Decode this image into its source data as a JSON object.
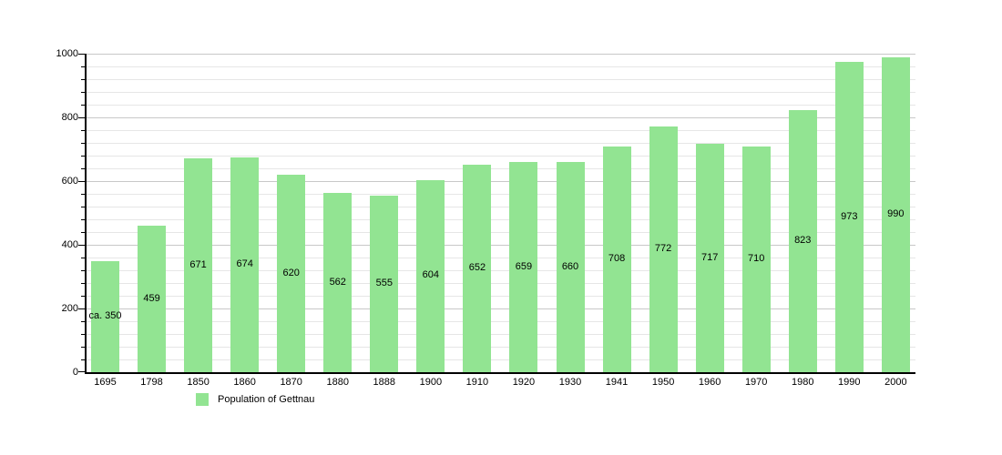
{
  "chart_data": {
    "type": "bar",
    "title": "",
    "xlabel": "",
    "ylabel": "",
    "categories": [
      "1695",
      "1798",
      "1850",
      "1860",
      "1870",
      "1880",
      "1888",
      "1900",
      "1910",
      "1920",
      "1930",
      "1941",
      "1950",
      "1960",
      "1970",
      "1980",
      "1990",
      "2000"
    ],
    "values": [
      350,
      459,
      671,
      674,
      620,
      562,
      555,
      604,
      652,
      659,
      660,
      708,
      772,
      717,
      710,
      823,
      973,
      990
    ],
    "value_labels": [
      "ca. 350",
      "459",
      "671",
      "674",
      "620",
      "562",
      "555",
      "604",
      "652",
      "659",
      "660",
      "708",
      "772",
      "717",
      "710",
      "823",
      "973",
      "990"
    ],
    "ylim": [
      0,
      1000
    ],
    "y_major_step": 200,
    "y_minor_step": 40,
    "y_tick_labels": [
      "0",
      "200",
      "400",
      "600",
      "800",
      "1000"
    ],
    "grid": "on",
    "legend": {
      "position": "bottom-left",
      "entries": [
        {
          "label": "Population of Gettnau",
          "color": "#92e492"
        }
      ]
    },
    "colors": {
      "bar": "#92e492",
      "axis": "#000000",
      "grid_major": "#c8c8c8",
      "grid_minor": "#e6e6e6",
      "text": "#000000",
      "background": "#ffffff"
    }
  }
}
